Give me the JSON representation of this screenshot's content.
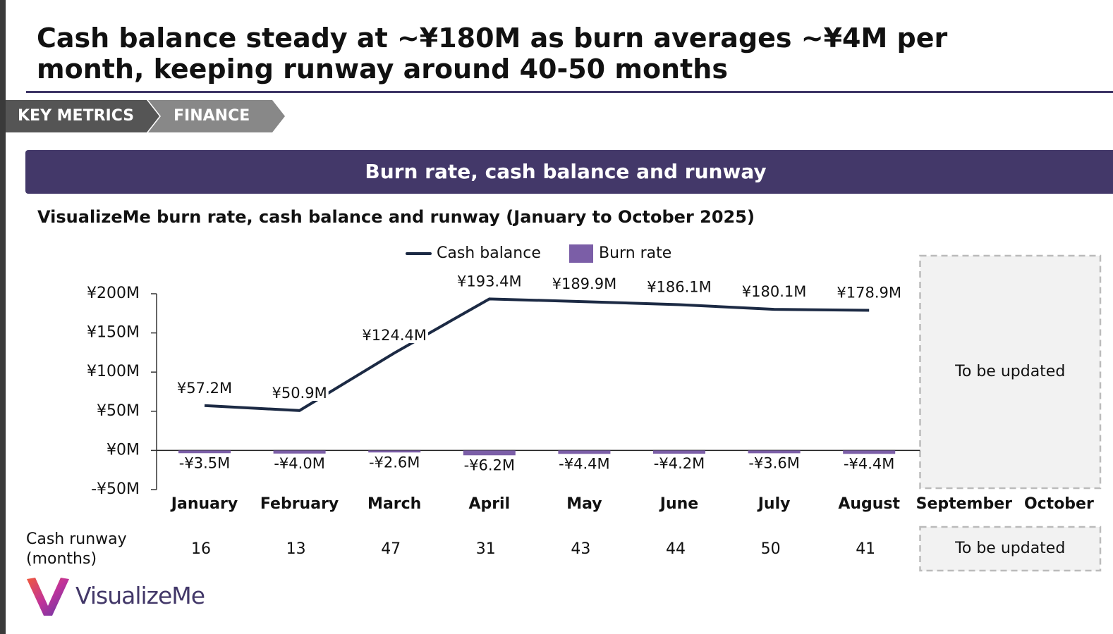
{
  "header": {
    "title": "Cash balance steady at ~¥180M as burn averages ~¥4M per month, keeping runway around 40-50 months"
  },
  "breadcrumb": [
    "KEY METRICS",
    "FINANCE"
  ],
  "banner": "Burn rate, cash balance and runway",
  "chart_data": {
    "type": "bar_line",
    "title": "VisualizeMe burn rate, cash balance and runway (January to October 2025)",
    "categories": [
      "January",
      "February",
      "March",
      "April",
      "May",
      "June",
      "July",
      "August",
      "September",
      "October"
    ],
    "series": [
      {
        "name": "Cash balance",
        "type": "line",
        "color": "#1c2a44",
        "values": [
          57.2,
          50.9,
          124.4,
          193.4,
          189.9,
          186.1,
          180.1,
          178.9,
          null,
          null
        ],
        "value_labels": [
          "¥57.2M",
          "¥50.9M",
          "¥124.4M",
          "¥193.4M",
          "¥189.9M",
          "¥186.1M",
          "¥180.1M",
          "¥178.9M",
          null,
          null
        ]
      },
      {
        "name": "Burn rate",
        "type": "bar",
        "color": "#7b5ea7",
        "values": [
          -3.5,
          -4.0,
          -2.6,
          -6.2,
          -4.4,
          -4.2,
          -3.6,
          -4.4,
          null,
          null
        ],
        "value_labels": [
          "-¥3.5M",
          "-¥4.0M",
          "-¥2.6M",
          "-¥6.2M",
          "-¥4.4M",
          "-¥4.2M",
          "-¥3.6M",
          "-¥4.4M",
          null,
          null
        ]
      }
    ],
    "ylim": [
      -50,
      200
    ],
    "yticks": [
      {
        "value": -50,
        "label": "-¥50M"
      },
      {
        "value": 0,
        "label": "¥0M"
      },
      {
        "value": 50,
        "label": "¥50M"
      },
      {
        "value": 100,
        "label": "¥100M"
      },
      {
        "value": 150,
        "label": "¥150M"
      },
      {
        "value": 200,
        "label": "¥200M"
      }
    ],
    "annotation": "To be updated",
    "legend": "top"
  },
  "runway": {
    "label": "Cash runway\n(months)",
    "values": [
      16,
      13,
      47,
      31,
      43,
      44,
      50,
      41
    ],
    "note": "To be updated"
  },
  "logo": "VisualizeMe"
}
